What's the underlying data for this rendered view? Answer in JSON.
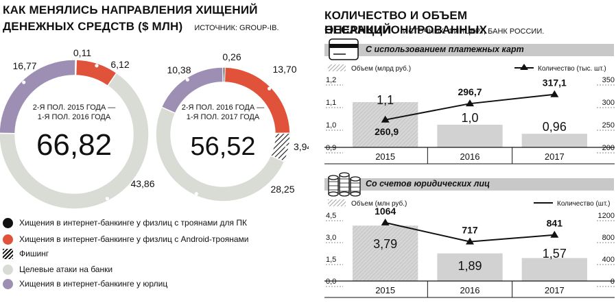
{
  "left": {
    "title_line1": "КАК МЕНЯЛИСЬ НАПРАВЛЕНИЯ ХИЩЕНИЙ",
    "title_line2": "ДЕНЕЖНЫХ СРЕДСТВ ($ МЛН)",
    "source": "ИСТОЧНИК: GROUP-IB.",
    "legend": [
      {
        "label": "Хищения в интернет-банкинге у физлиц с троянами для ПК",
        "color": "#111111",
        "pattern": "solid"
      },
      {
        "label": "Хищения в интернет-банкинге у физлиц с Android-троянами",
        "color": "#e0523a",
        "pattern": "solid"
      },
      {
        "label": "Фишинг",
        "color": "#111111",
        "pattern": "hatch"
      },
      {
        "label": "Целевые атаки на банки",
        "color": "#d9dcd5",
        "pattern": "solid"
      },
      {
        "label": "Хищения в интернет-банкинге у юрлиц",
        "color": "#9d8fb4",
        "pattern": "solid"
      }
    ]
  },
  "right": {
    "title_line1": "КОЛИЧЕСТВО И ОБЪЕМ НЕСАНКЦИОНИРОВАННЫХ",
    "title_line2": "ОПЕРАЦИЙ",
    "source": "ИСТОЧНИК: ФИНЦЕРТ, БАНК РОССИИ.",
    "panel1_label": "С использованием платежных карт",
    "panel2_label": "Со счетов юридических лиц"
  },
  "colors": {
    "purple": "#9d8fb4",
    "red": "#e0523a",
    "grey": "#d9dcd5",
    "black": "#111111",
    "band": "#c8c8c8",
    "bar": "#cfcfcf"
  },
  "chart_data": [
    {
      "type": "pie",
      "subtype": "donut",
      "period": "2-Я ПОЛ. 2015 ГОДА — 1-Я ПОЛ. 2016 ГОДА",
      "total": "66,82",
      "slices": [
        {
          "category": "Хищения в интернет-банкинге у физлиц с троянами для ПК",
          "value": 0.11,
          "label": "0,11"
        },
        {
          "category": "Хищения в интернет-банкинге у физлиц с Android-троянами",
          "value": 6.12,
          "label": "6,12"
        },
        {
          "category": "Целевые атаки на банки",
          "value": 43.86,
          "label": "43,86"
        },
        {
          "category": "Хищения в интернет-банкинге у юрлиц",
          "value": 16.77,
          "label": "16,77"
        }
      ]
    },
    {
      "type": "pie",
      "subtype": "donut",
      "period": "2-Я ПОЛ. 2016 ГОДА — 1-Я ПОЛ. 2017 ГОДА",
      "total": "56,52",
      "slices": [
        {
          "category": "Хищения в интернет-банкинге у физлиц с троянами для ПК",
          "value": 0.26,
          "label": "0,26"
        },
        {
          "category": "Хищения в интернет-банкинге у физлиц с Android-троянами",
          "value": 13.7,
          "label": "13,70"
        },
        {
          "category": "Фишинг",
          "value": 3.94,
          "label": "3,94"
        },
        {
          "category": "Целевые атаки на банки",
          "value": 28.25,
          "label": "28,25"
        },
        {
          "category": "Хищения в интернет-банкинге у юрлиц",
          "value": 10.38,
          "label": "10,38"
        }
      ]
    },
    {
      "type": "bar",
      "title": "С использованием платежных карт",
      "categories": [
        "2015",
        "2016",
        "2017"
      ],
      "series": [
        {
          "name": "Объем (млрд руб.)",
          "type": "bar",
          "values": [
            1.1,
            1.0,
            0.96
          ],
          "labels": [
            "1,1",
            "1,0",
            "0,96"
          ]
        },
        {
          "name": "Количество (тыс. шт.)",
          "type": "line",
          "values": [
            260.9,
            296.7,
            317.1
          ],
          "labels": [
            "260,9",
            "296,7",
            "317,1"
          ]
        }
      ],
      "y_left": {
        "ticks": [
          "1,2",
          "1,1",
          "1,0",
          "0,9"
        ],
        "min": 0.9,
        "max": 1.2
      },
      "y_right": {
        "ticks": [
          "350",
          "300",
          "250",
          "200"
        ],
        "min": 200,
        "max": 350
      }
    },
    {
      "type": "bar",
      "title": "Со счетов юридических лиц",
      "categories": [
        "2015",
        "2016",
        "2017"
      ],
      "series": [
        {
          "name": "Объем (млн руб.)",
          "type": "bar",
          "values": [
            3.79,
            1.89,
            1.57
          ],
          "labels": [
            "3,79",
            "1,89",
            "1,57"
          ]
        },
        {
          "name": "Количество (шт.)",
          "type": "line",
          "values": [
            1064,
            717,
            841
          ],
          "labels": [
            "1064",
            "717",
            "841"
          ]
        }
      ],
      "y_left": {
        "ticks": [
          "4,5",
          "3,0",
          "1,5",
          "0,0"
        ],
        "min": 0,
        "max": 4.5
      },
      "y_right": {
        "ticks": [
          "1200",
          "800",
          "400",
          "0"
        ],
        "min": 0,
        "max": 1200
      }
    }
  ]
}
